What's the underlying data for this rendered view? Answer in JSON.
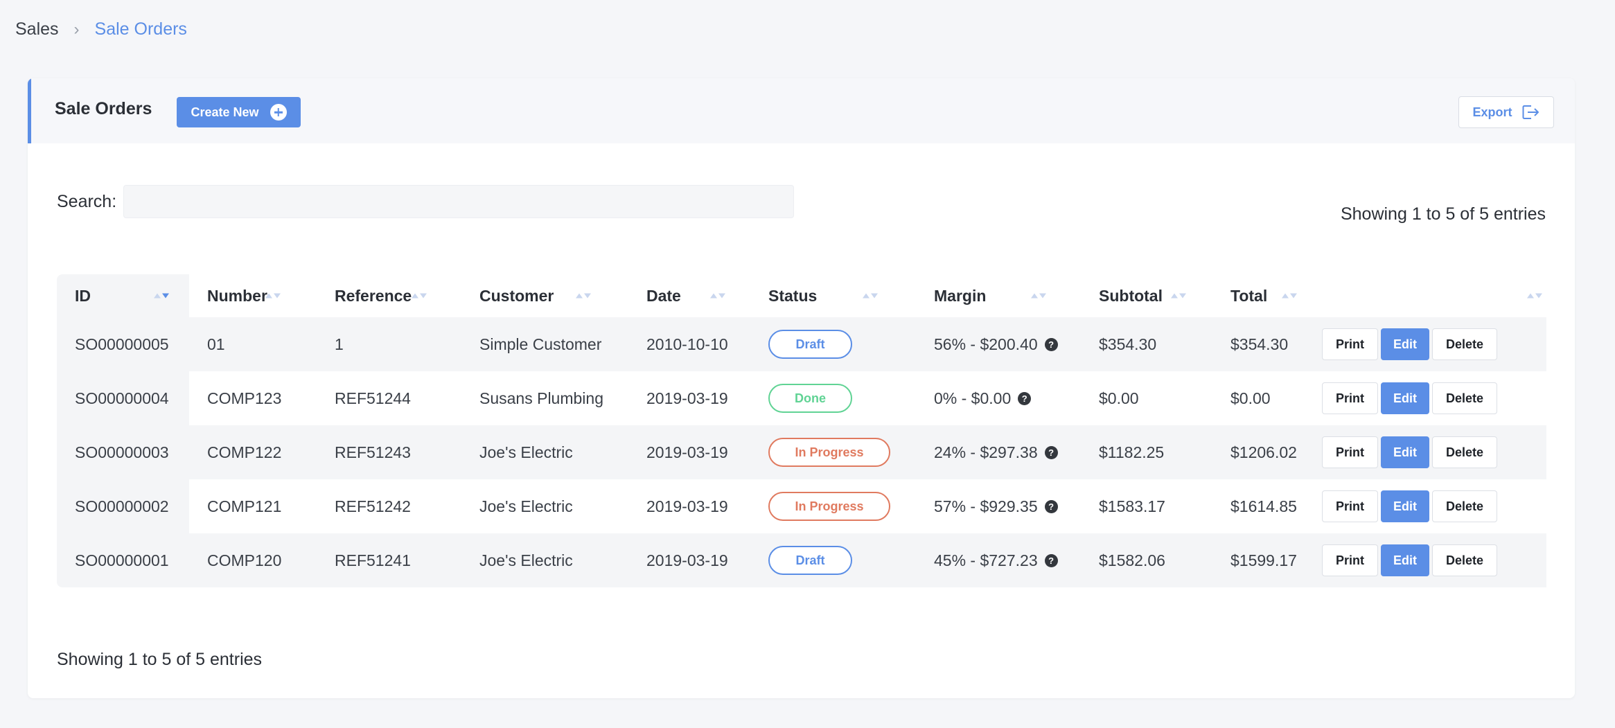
{
  "breadcrumb": {
    "root": "Sales",
    "separator": "›",
    "current": "Sale Orders"
  },
  "card": {
    "title": "Sale Orders",
    "create_label": "Create New",
    "export_label": "Export"
  },
  "search": {
    "label": "Search:",
    "value": ""
  },
  "info_text": "Showing 1 to 5 of 5 entries",
  "columns": [
    "ID",
    "Number",
    "Reference",
    "Customer",
    "Date",
    "Status",
    "Margin",
    "Subtotal",
    "Total",
    ""
  ],
  "sort_state": {
    "column": "ID",
    "direction": "descending"
  },
  "actions": {
    "print": "Print",
    "edit": "Edit",
    "delete": "Delete"
  },
  "rows": [
    {
      "id": "SO00000005",
      "number": "01",
      "reference": "1",
      "customer": "Simple Customer",
      "date": "2010-10-10",
      "status": "Draft",
      "margin": "56% - $200.40",
      "subtotal": "$354.30",
      "total": "$354.30"
    },
    {
      "id": "SO00000004",
      "number": "COMP123",
      "reference": "REF51244",
      "customer": "Susans Plumbing",
      "date": "2019-03-19",
      "status": "Done",
      "margin": "0% - $0.00",
      "subtotal": "$0.00",
      "total": "$0.00"
    },
    {
      "id": "SO00000003",
      "number": "COMP122",
      "reference": "REF51243",
      "customer": "Joe's Electric",
      "date": "2019-03-19",
      "status": "In Progress",
      "margin": "24% - $297.38",
      "subtotal": "$1182.25",
      "total": "$1206.02"
    },
    {
      "id": "SO00000002",
      "number": "COMP121",
      "reference": "REF51242",
      "customer": "Joe's Electric",
      "date": "2019-03-19",
      "status": "In Progress",
      "margin": "57% - $929.35",
      "subtotal": "$1583.17",
      "total": "$1614.85"
    },
    {
      "id": "SO00000001",
      "number": "COMP120",
      "reference": "REF51241",
      "customer": "Joe's Electric",
      "date": "2019-03-19",
      "status": "Draft",
      "margin": "45% - $727.23",
      "subtotal": "$1582.06",
      "total": "$1599.17"
    }
  ],
  "colors": {
    "accent": "#5b8ee6",
    "draft": "#5b8ee6",
    "done": "#60d394",
    "in_progress": "#e07a5f"
  }
}
